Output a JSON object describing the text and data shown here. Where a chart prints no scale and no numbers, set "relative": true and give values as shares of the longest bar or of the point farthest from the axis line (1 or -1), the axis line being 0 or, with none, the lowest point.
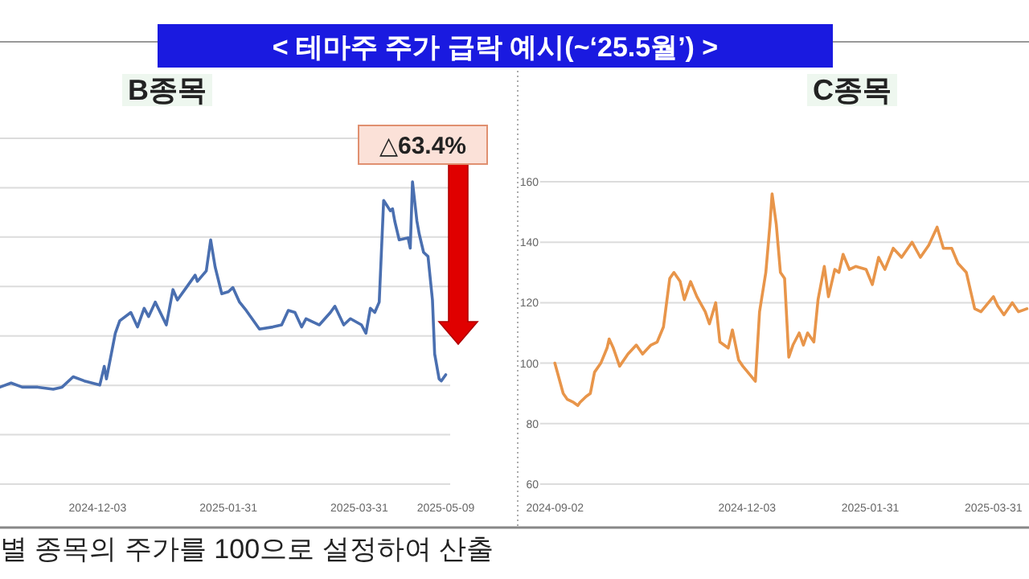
{
  "chart_data": [
    {
      "type": "other",
      "title": "< 테마주 주가 급락 예시(~‘25.5월’) >",
      "annotations": [
        "별 종목의 주가를 100으로 설정하여 산출"
      ]
    },
    {
      "type": "line",
      "title": "B종목",
      "relative": true,
      "color": "#4a6fb0",
      "grid": "y",
      "annotations": [
        "△63.4%"
      ],
      "xlim": [
        "2024-10-20",
        "2025-05-11"
      ],
      "xticks": [
        "2024-12-03",
        "2025-01-31",
        "2025-03-31",
        "2025-05-09"
      ],
      "x": [
        "2024-10-20",
        "2024-10-25",
        "2024-10-30",
        "2024-11-06",
        "2024-11-13",
        "2024-11-17",
        "2024-11-22",
        "2024-11-27",
        "2024-12-04",
        "2024-12-06",
        "2024-12-07",
        "2024-12-11",
        "2024-12-13",
        "2024-12-18",
        "2024-12-21",
        "2024-12-24",
        "2024-12-26",
        "2024-12-29",
        "2025-01-03",
        "2025-01-06",
        "2025-01-08",
        "2025-01-12",
        "2025-01-16",
        "2025-01-17",
        "2025-01-21",
        "2025-01-23",
        "2025-01-25",
        "2025-01-28",
        "2025-01-31",
        "2025-02-02",
        "2025-02-05",
        "2025-02-08",
        "2025-02-14",
        "2025-02-20",
        "2025-02-24",
        "2025-02-27",
        "2025-03-02",
        "2025-03-05",
        "2025-03-07",
        "2025-03-13",
        "2025-03-18",
        "2025-03-20",
        "2025-03-24",
        "2025-03-27",
        "2025-04-01",
        "2025-04-03",
        "2025-04-05",
        "2025-04-07",
        "2025-04-09",
        "2025-04-11",
        "2025-04-14",
        "2025-04-15",
        "2025-04-16",
        "2025-04-18",
        "2025-04-22",
        "2025-04-23",
        "2025-04-24",
        "2025-04-26",
        "2025-04-27",
        "2025-04-29",
        "2025-05-01",
        "2025-05-03",
        "2025-05-04",
        "2025-05-06",
        "2025-05-07",
        "2025-05-09"
      ],
      "values": [
        0.01,
        0.03,
        0.01,
        0.01,
        0,
        0.01,
        0.06,
        0.04,
        0.02,
        0.11,
        0.05,
        0.27,
        0.33,
        0.37,
        0.3,
        0.39,
        0.35,
        0.42,
        0.31,
        0.48,
        0.43,
        0.49,
        0.55,
        0.52,
        0.57,
        0.72,
        0.59,
        0.46,
        0.47,
        0.49,
        0.42,
        0.38,
        0.29,
        0.3,
        0.31,
        0.38,
        0.37,
        0.3,
        0.34,
        0.31,
        0.37,
        0.4,
        0.31,
        0.34,
        0.31,
        0.27,
        0.39,
        0.37,
        0.42,
        0.91,
        0.86,
        0.87,
        0.81,
        0.72,
        0.73,
        0.68,
        1,
        0.81,
        0.75,
        0.66,
        0.64,
        0.43,
        0.17,
        0.05,
        0.04,
        0.07
      ]
    },
    {
      "type": "line",
      "title": "C종목",
      "color": "#e8954a",
      "grid": "y",
      "xlim": [
        "2024-08-26",
        "2025-04-17"
      ],
      "xticks": [
        "2024-09-02",
        "2024-12-03",
        "2025-01-31",
        "2025-03-31"
      ],
      "ylim": [
        60,
        160
      ],
      "yticks": [
        60,
        80,
        100,
        120,
        140,
        160
      ],
      "x": [
        "2024-09-02",
        "2024-09-06",
        "2024-09-08",
        "2024-09-11",
        "2024-09-13",
        "2024-09-14",
        "2024-09-17",
        "2024-09-19",
        "2024-09-21",
        "2024-09-24",
        "2024-09-27",
        "2024-09-28",
        "2024-09-30",
        "2024-10-03",
        "2024-10-07",
        "2024-10-11",
        "2024-10-14",
        "2024-10-18",
        "2024-10-21",
        "2024-10-24",
        "2024-10-27",
        "2024-10-29",
        "2024-11-01",
        "2024-11-03",
        "2024-11-06",
        "2024-11-09",
        "2024-11-13",
        "2024-11-15",
        "2024-11-18",
        "2024-11-20",
        "2024-11-24",
        "2024-11-26",
        "2024-11-29",
        "2024-12-01",
        "2024-12-07",
        "2024-12-09",
        "2024-12-12",
        "2024-12-14",
        "2024-12-15",
        "2024-12-17",
        "2024-12-19",
        "2024-12-21",
        "2024-12-23",
        "2024-12-25",
        "2024-12-28",
        "2024-12-30",
        "2025-01-01",
        "2025-01-04",
        "2025-01-06",
        "2025-01-09",
        "2025-01-11",
        "2025-01-14",
        "2025-01-16",
        "2025-01-18",
        "2025-01-21",
        "2025-01-24",
        "2025-01-29",
        "2025-02-01",
        "2025-02-04",
        "2025-02-07",
        "2025-02-11",
        "2025-02-15",
        "2025-02-20",
        "2025-02-24",
        "2025-02-28",
        "2025-03-04",
        "2025-03-07",
        "2025-03-11",
        "2025-03-14",
        "2025-03-18",
        "2025-03-22",
        "2025-03-25",
        "2025-03-31",
        "2025-04-02",
        "2025-04-05",
        "2025-04-09",
        "2025-04-12",
        "2025-04-16"
      ],
      "values": [
        100,
        90,
        88,
        87,
        86,
        87,
        89,
        90,
        97,
        100,
        105,
        108,
        105,
        99,
        103,
        106,
        103,
        106,
        107,
        112,
        128,
        130,
        127,
        121,
        127,
        122,
        117,
        113,
        120,
        107,
        105,
        111,
        101,
        99,
        94,
        117,
        130,
        146,
        156,
        146,
        130,
        128,
        102,
        106,
        110,
        106,
        110,
        107,
        121,
        132,
        122,
        131,
        130,
        136,
        131,
        132,
        131,
        126,
        135,
        131,
        138,
        135,
        140,
        135,
        139,
        145,
        138,
        138,
        133,
        130,
        118,
        117,
        122,
        119,
        116,
        120,
        117,
        118
      ]
    }
  ]
}
